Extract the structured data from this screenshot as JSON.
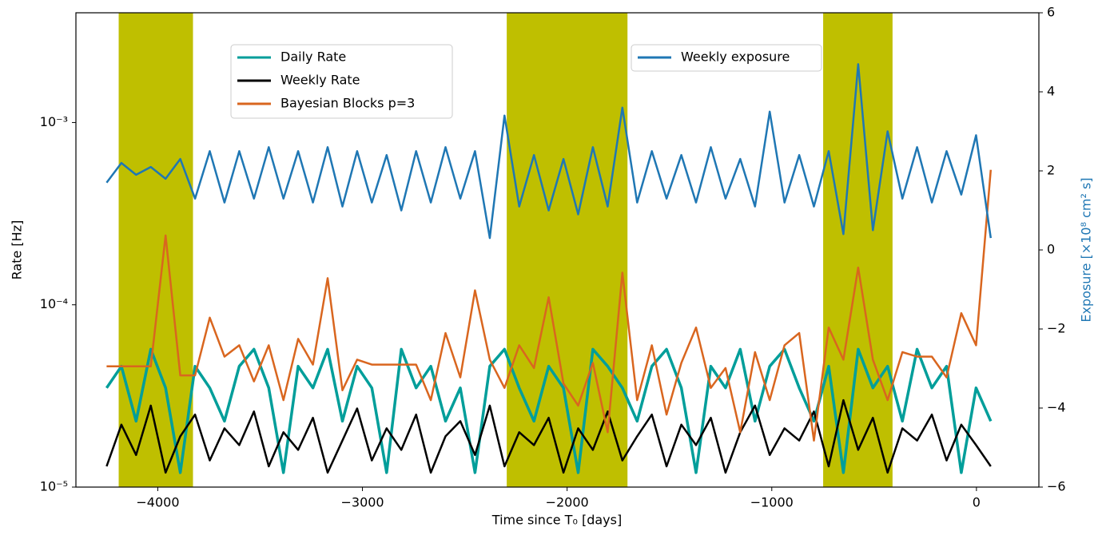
{
  "chart_data": {
    "type": "line",
    "x_label": "Time since T₀ [days]",
    "y_label": "Rate [Hz]",
    "y2_label": "Exposure [×10⁸ cm² s]",
    "y2_label_color": "#1f77b4",
    "log_y": true,
    "xlim": [
      -4400,
      305
    ],
    "ylim": [
      1e-05,
      0.004
    ],
    "y2lim": [
      -6,
      6
    ],
    "xticks": [
      {
        "value": -4000,
        "label": "−4000"
      },
      {
        "value": -3000,
        "label": "−3000"
      },
      {
        "value": -2000,
        "label": "−2000"
      },
      {
        "value": -1000,
        "label": "−1000"
      },
      0
    ],
    "yticks": [
      {
        "value": 1e-05,
        "label": "10⁻⁵"
      },
      {
        "value": 0.0001,
        "label": "10⁻⁴"
      },
      {
        "value": 0.001,
        "label": "10⁻³"
      }
    ],
    "y2ticks": [
      {
        "value": -6,
        "label": "−6"
      },
      {
        "value": -4,
        "label": "−4"
      },
      {
        "value": -2,
        "label": "−2"
      },
      0,
      2,
      4,
      6
    ],
    "shaded_regions": [
      [
        -4191,
        -3828
      ],
      [
        -2295,
        -1705
      ],
      [
        -749,
        -410
      ]
    ],
    "shade_color": "#bfbf00",
    "x": [
      -4250,
      -4178,
      -4106,
      -4034,
      -3962,
      -3890,
      -3818,
      -3746,
      -3674,
      -3602,
      -3530,
      -3458,
      -3386,
      -3314,
      -3242,
      -3170,
      -3098,
      -3026,
      -2954,
      -2882,
      -2810,
      -2738,
      -2666,
      -2594,
      -2522,
      -2450,
      -2378,
      -2306,
      -2234,
      -2162,
      -2090,
      -2018,
      -1946,
      -1874,
      -1802,
      -1730,
      -1658,
      -1586,
      -1514,
      -1442,
      -1370,
      -1298,
      -1226,
      -1154,
      -1082,
      -1010,
      -938,
      -866,
      -794,
      -722,
      -650,
      -578,
      -506,
      -434,
      -362,
      -290,
      -218,
      -146,
      -74,
      -2,
      70
    ],
    "series": [
      {
        "name": "Daily Rate",
        "color": "#009e9a",
        "legend": 1,
        "values": [
          3.5e-05,
          4.6e-05,
          2.3e-05,
          5.7e-05,
          3.5e-05,
          1.2e-05,
          4.6e-05,
          3.5e-05,
          2.3e-05,
          4.6e-05,
          5.7e-05,
          3.5e-05,
          1.2e-05,
          4.6e-05,
          3.5e-05,
          5.7e-05,
          2.3e-05,
          4.6e-05,
          3.5e-05,
          1.2e-05,
          5.7e-05,
          3.5e-05,
          4.6e-05,
          2.3e-05,
          3.5e-05,
          1.2e-05,
          4.6e-05,
          5.7e-05,
          3.5e-05,
          2.3e-05,
          4.6e-05,
          3.5e-05,
          1.2e-05,
          5.7e-05,
          4.6e-05,
          3.5e-05,
          2.3e-05,
          4.6e-05,
          5.7e-05,
          3.5e-05,
          1.2e-05,
          4.6e-05,
          3.5e-05,
          5.7e-05,
          2.3e-05,
          4.6e-05,
          5.7e-05,
          3.5e-05,
          2.3e-05,
          4.6e-05,
          1.2e-05,
          5.7e-05,
          3.5e-05,
          4.6e-05,
          2.3e-05,
          5.7e-05,
          3.5e-05,
          4.6e-05,
          1.2e-05,
          3.5e-05,
          2.3e-05
        ]
      },
      {
        "name": "Weekly Rate",
        "color": "#000000",
        "legend": 1,
        "values": [
          1.3e-05,
          2.2e-05,
          1.5e-05,
          2.8e-05,
          1.2e-05,
          1.9e-05,
          2.5e-05,
          1.4e-05,
          2.1e-05,
          1.7e-05,
          2.6e-05,
          1.3e-05,
          2e-05,
          1.6e-05,
          2.4e-05,
          1.2e-05,
          1.8e-05,
          2.7e-05,
          1.4e-05,
          2.1e-05,
          1.6e-05,
          2.5e-05,
          1.2e-05,
          1.9e-05,
          2.3e-05,
          1.5e-05,
          2.8e-05,
          1.3e-05,
          2e-05,
          1.7e-05,
          2.4e-05,
          1.2e-05,
          2.1e-05,
          1.6e-05,
          2.6e-05,
          1.4e-05,
          1.9e-05,
          2.5e-05,
          1.3e-05,
          2.2e-05,
          1.7e-05,
          2.4e-05,
          1.2e-05,
          2e-05,
          2.8e-05,
          1.5e-05,
          2.1e-05,
          1.8e-05,
          2.6e-05,
          1.3e-05,
          3e-05,
          1.6e-05,
          2.4e-05,
          1.2e-05,
          2.1e-05,
          1.8e-05,
          2.5e-05,
          1.4e-05,
          2.2e-05,
          1.7e-05,
          1.3e-05
        ]
      },
      {
        "name": "Bayesian Blocks p=3",
        "color": "#d9661f",
        "legend": 1,
        "values": [
          4.6e-05,
          4.6e-05,
          4.6e-05,
          4.6e-05,
          0.00024,
          4.1e-05,
          4.1e-05,
          8.5e-05,
          5.2e-05,
          6e-05,
          3.8e-05,
          6e-05,
          3e-05,
          6.5e-05,
          4.7e-05,
          0.00014,
          3.4e-05,
          5e-05,
          4.7e-05,
          4.7e-05,
          4.7e-05,
          4.7e-05,
          3e-05,
          7e-05,
          4e-05,
          0.00012,
          5e-05,
          3.5e-05,
          6e-05,
          4.5e-05,
          0.00011,
          3.7e-05,
          2.8e-05,
          4.8e-05,
          2e-05,
          0.00015,
          3e-05,
          6e-05,
          2.5e-05,
          4.8e-05,
          7.5e-05,
          3.5e-05,
          4.5e-05,
          2e-05,
          5.5e-05,
          3e-05,
          6e-05,
          7e-05,
          1.8e-05,
          7.5e-05,
          5e-05,
          0.00016,
          5e-05,
          3e-05,
          5.5e-05,
          5.2e-05,
          5.2e-05,
          4e-05,
          9e-05,
          6e-05,
          0.00055
        ]
      },
      {
        "name": "Weekly exposure",
        "color": "#1f77b4",
        "axis": "y2",
        "legend": 2,
        "values": [
          1.7,
          2.2,
          1.9,
          2.1,
          1.8,
          2.3,
          1.3,
          2.5,
          1.2,
          2.5,
          1.3,
          2.6,
          1.3,
          2.5,
          1.2,
          2.6,
          1.1,
          2.5,
          1.2,
          2.4,
          1.0,
          2.5,
          1.2,
          2.6,
          1.3,
          2.5,
          0.3,
          3.4,
          1.1,
          2.4,
          1.0,
          2.3,
          0.9,
          2.6,
          1.1,
          3.6,
          1.2,
          2.5,
          1.3,
          2.4,
          1.2,
          2.6,
          1.3,
          2.3,
          1.1,
          3.5,
          1.2,
          2.4,
          1.1,
          2.5,
          0.4,
          4.7,
          0.5,
          3.0,
          1.3,
          2.6,
          1.2,
          2.5,
          1.4,
          2.9,
          0.3
        ]
      }
    ]
  }
}
